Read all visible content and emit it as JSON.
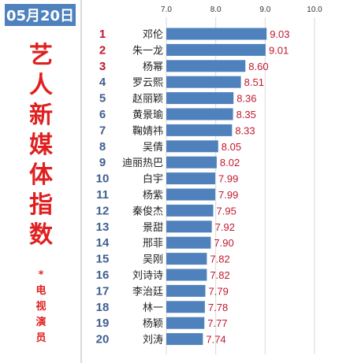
{
  "date_label": "05月20日",
  "title_chars": [
    "艺",
    "人",
    "新",
    "媒",
    "体",
    "指",
    "数"
  ],
  "subtitle_chars": [
    "*",
    "电",
    "视",
    "演",
    "员"
  ],
  "colors": {
    "bar": "#4f81bd",
    "accent_red": "#c0182f",
    "rank_blue": "#3f5f8f"
  },
  "chart_data": {
    "type": "bar",
    "orientation": "horizontal",
    "xlim": [
      7.0,
      10.0
    ],
    "xticks": [
      "7.0",
      "8.0",
      "9.0",
      "10.0"
    ],
    "grid": true,
    "rows": [
      {
        "rank": "1",
        "name": "邓伦",
        "value": 9.03
      },
      {
        "rank": "2",
        "name": "朱一龙",
        "value": 9.01
      },
      {
        "rank": "3",
        "name": "杨幂",
        "value": 8.6
      },
      {
        "rank": "4",
        "name": "罗云熙",
        "value": 8.51
      },
      {
        "rank": "5",
        "name": "赵丽颖",
        "value": 8.36
      },
      {
        "rank": "6",
        "name": "黄景瑜",
        "value": 8.35
      },
      {
        "rank": "7",
        "name": "鞠婧祎",
        "value": 8.33
      },
      {
        "rank": "8",
        "name": "吴倩",
        "value": 8.05
      },
      {
        "rank": "9",
        "name": "迪丽热巴",
        "value": 8.02
      },
      {
        "rank": "10",
        "name": "白宇",
        "value": 7.99
      },
      {
        "rank": "11",
        "name": "杨紫",
        "value": 7.99
      },
      {
        "rank": "12",
        "name": "秦俊杰",
        "value": 7.95
      },
      {
        "rank": "13",
        "name": "景甜",
        "value": 7.92
      },
      {
        "rank": "14",
        "name": "邢菲",
        "value": 7.9
      },
      {
        "rank": "15",
        "name": "吴刚",
        "value": 7.82
      },
      {
        "rank": "16",
        "name": "刘诗诗",
        "value": 7.82
      },
      {
        "rank": "17",
        "name": "李治廷",
        "value": 7.79
      },
      {
        "rank": "18",
        "name": "林一",
        "value": 7.78
      },
      {
        "rank": "19",
        "name": "杨颖",
        "value": 7.77
      },
      {
        "rank": "20",
        "name": "刘涛",
        "value": 7.74
      }
    ]
  }
}
